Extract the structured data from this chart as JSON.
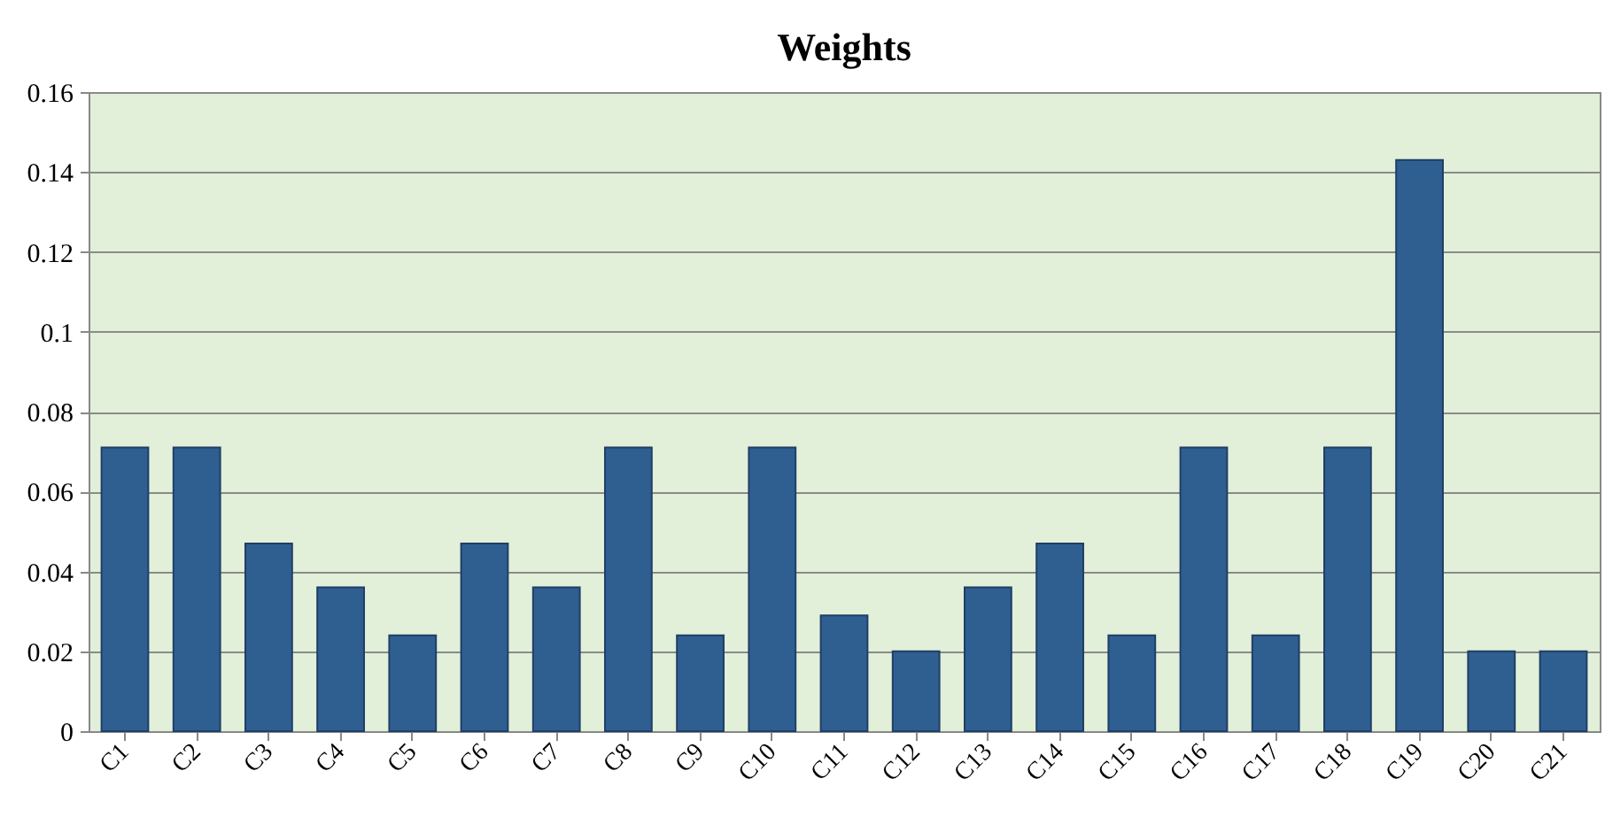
{
  "chart_data": {
    "type": "bar",
    "title": "Weights",
    "categories": [
      "C1",
      "C2",
      "C3",
      "C4",
      "C5",
      "C6",
      "C7",
      "C8",
      "C9",
      "C10",
      "C11",
      "C12",
      "C13",
      "C14",
      "C15",
      "C16",
      "C17",
      "C18",
      "C19",
      "C20",
      "C21"
    ],
    "values": [
      0.071,
      0.071,
      0.047,
      0.036,
      0.024,
      0.047,
      0.036,
      0.071,
      0.024,
      0.071,
      0.029,
      0.02,
      0.036,
      0.047,
      0.024,
      0.071,
      0.024,
      0.071,
      0.143,
      0.02,
      0.02
    ],
    "color": "#2f5f91",
    "ylim": [
      0,
      0.16
    ],
    "yticks": [
      0,
      0.02,
      0.04,
      0.06,
      0.08,
      0.1,
      0.12,
      0.14,
      0.16
    ],
    "grid": "y"
  }
}
